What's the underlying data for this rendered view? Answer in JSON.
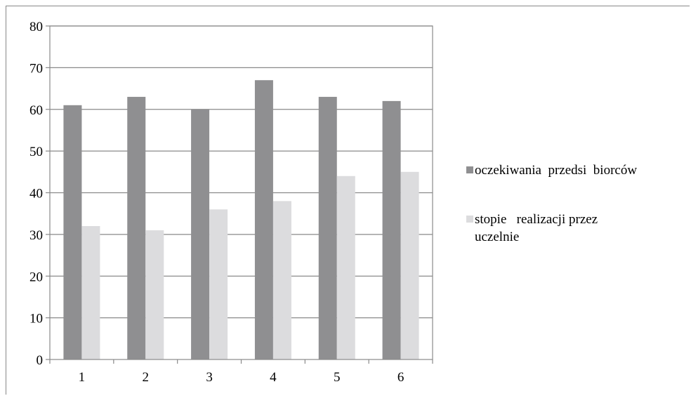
{
  "chart_data": {
    "type": "bar",
    "categories": [
      "1",
      "2",
      "3",
      "4",
      "5",
      "6"
    ],
    "series": [
      {
        "name": "oczekiwania  przedsi  biorców",
        "values": [
          61,
          63,
          60,
          67,
          63,
          62
        ],
        "color": "#8f8f91"
      },
      {
        "name": "stopie   realizacji przez uczelnie",
        "values": [
          32,
          31,
          36,
          38,
          44,
          45
        ],
        "color": "#dcdcde"
      }
    ],
    "yticks": [
      "0",
      "10",
      "20",
      "30",
      "40",
      "50",
      "60",
      "70",
      "80"
    ],
    "ylim": [
      0,
      80
    ],
    "grid": true,
    "legend_position": "right",
    "legend": {
      "entry1_line1": "oczekiwania  przedsi  biorców",
      "entry2_line1": "stopie   realizacji przez",
      "entry2_line2": "uczelnie"
    }
  }
}
